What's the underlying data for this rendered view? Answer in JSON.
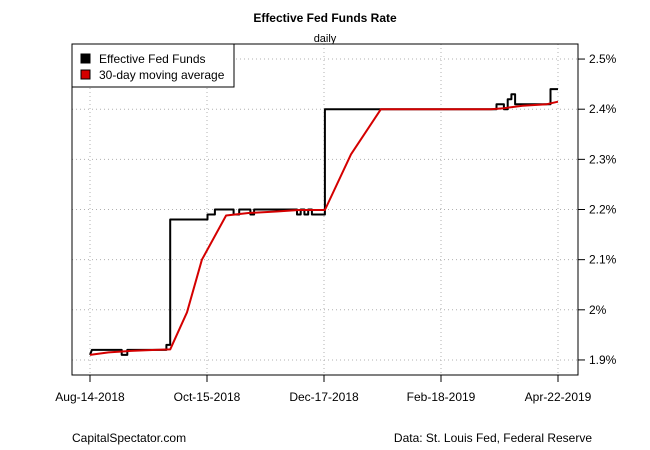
{
  "chart_data": {
    "type": "line",
    "title": "Effective Fed Funds Rate",
    "subtitle": "daily",
    "xlabel": "",
    "ylabel": "",
    "y_axis_position": "right",
    "grid": true,
    "legend_position": "top-left",
    "x_ticks": [
      "Aug-14-2018",
      "Oct-15-2018",
      "Dec-17-2018",
      "Feb-18-2019",
      "Apr-22-2019"
    ],
    "x_range_days": [
      0,
      251
    ],
    "ylim": [
      1.87,
      2.53
    ],
    "y_ticks": [
      1.9,
      2.0,
      2.1,
      2.2,
      2.3,
      2.4,
      2.5
    ],
    "y_tick_labels": [
      "1.9%",
      "2%",
      "2.1%",
      "2.2%",
      "2.3%",
      "2.4%",
      "2.5%"
    ],
    "series": [
      {
        "name": "Effective Fed Funds",
        "color": "#000000",
        "points": [
          [
            0,
            1.91
          ],
          [
            1,
            1.92
          ],
          [
            17,
            1.92
          ],
          [
            17,
            1.91
          ],
          [
            20,
            1.91
          ],
          [
            20,
            1.92
          ],
          [
            41,
            1.92
          ],
          [
            41,
            1.93
          ],
          [
            43,
            1.93
          ],
          [
            43,
            2.18
          ],
          [
            63,
            2.18
          ],
          [
            63,
            2.19
          ],
          [
            67,
            2.19
          ],
          [
            67,
            2.2
          ],
          [
            77,
            2.2
          ],
          [
            77,
            2.19
          ],
          [
            80,
            2.19
          ],
          [
            80,
            2.2
          ],
          [
            86,
            2.2
          ],
          [
            86,
            2.19
          ],
          [
            88,
            2.19
          ],
          [
            88,
            2.2
          ],
          [
            111,
            2.2
          ],
          [
            111,
            2.19
          ],
          [
            113,
            2.19
          ],
          [
            113,
            2.2
          ],
          [
            115,
            2.2
          ],
          [
            115,
            2.19
          ],
          [
            117,
            2.19
          ],
          [
            117,
            2.2
          ],
          [
            119,
            2.2
          ],
          [
            119,
            2.19
          ],
          [
            126,
            2.19
          ],
          [
            126,
            2.4
          ],
          [
            218,
            2.4
          ],
          [
            218,
            2.41
          ],
          [
            222,
            2.41
          ],
          [
            222,
            2.4
          ],
          [
            224,
            2.4
          ],
          [
            224,
            2.42
          ],
          [
            226,
            2.42
          ],
          [
            226,
            2.43
          ],
          [
            228,
            2.43
          ],
          [
            228,
            2.41
          ],
          [
            247,
            2.41
          ],
          [
            247,
            2.44
          ],
          [
            251,
            2.44
          ]
        ]
      },
      {
        "name": "30-day moving average",
        "color": "#d40000",
        "points": [
          [
            0,
            1.91
          ],
          [
            10,
            1.915
          ],
          [
            22,
            1.918
          ],
          [
            35,
            1.92
          ],
          [
            43,
            1.921
          ],
          [
            52,
            1.995
          ],
          [
            60,
            2.1
          ],
          [
            73,
            2.188
          ],
          [
            85,
            2.193
          ],
          [
            100,
            2.196
          ],
          [
            112,
            2.199
          ],
          [
            126,
            2.199
          ],
          [
            140,
            2.31
          ],
          [
            156,
            2.4
          ],
          [
            215,
            2.4
          ],
          [
            222,
            2.402
          ],
          [
            232,
            2.407
          ],
          [
            245,
            2.41
          ],
          [
            251,
            2.415
          ]
        ]
      }
    ]
  },
  "footer": {
    "source_site": "CapitalSpectator.com",
    "data_source": "Data: St. Louis Fed, Federal Reserve"
  }
}
